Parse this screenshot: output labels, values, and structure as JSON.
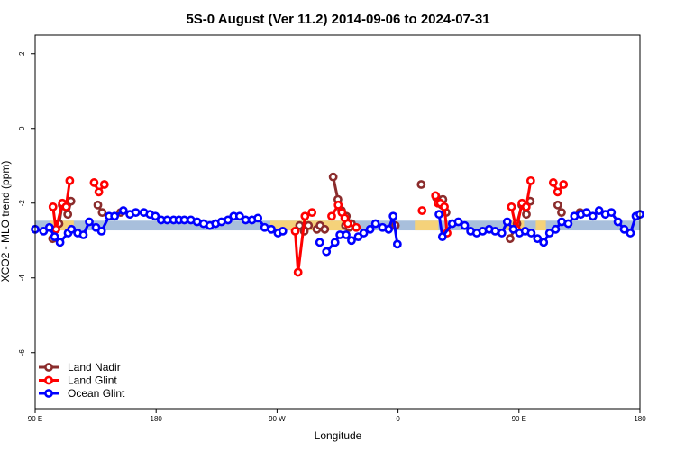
{
  "chart_data": {
    "type": "line",
    "title": "5S-0 August (Ver 11.2)   2014-09-06 to 2024-07-31",
    "xlabel": "Longitude",
    "ylabel": "XCO2 - MLO trend (ppm)",
    "xlim": [
      90,
      450
    ],
    "ylim": [
      -7.5,
      2.5
    ],
    "xticks": [
      {
        "value": 90,
        "label": "90 E"
      },
      {
        "value": 162,
        "label": "180"
      },
      {
        "value": 234,
        "label": "90 W"
      },
      {
        "value": 306,
        "label": "0"
      },
      {
        "value": 378,
        "label": "90 E"
      },
      {
        "value": 450,
        "label": "180"
      }
    ],
    "yticks": [
      {
        "value": 2,
        "label": "2"
      },
      {
        "value": 0,
        "label": "0"
      },
      {
        "value": -2,
        "label": "-2"
      },
      {
        "value": -4,
        "label": "-4"
      },
      {
        "value": -6,
        "label": "-6"
      }
    ],
    "grid": false,
    "legend_position": "bottom-left",
    "bands": [
      {
        "color": "#f5d27a",
        "segments": [
          [
            99,
            113
          ],
          [
            230,
            274
          ],
          [
            316,
            330
          ],
          [
            370,
            381
          ],
          [
            388,
            394
          ]
        ],
        "ymin": -2.73,
        "ymax": -2.47
      },
      {
        "color": "#a8bfdc",
        "segments": [
          [
            90,
            450
          ]
        ],
        "ymin": -2.73,
        "ymax": -2.47
      }
    ],
    "series": [
      {
        "name": "Land Nadir",
        "color": "#8b2c2c",
        "segments": [
          [
            [
              100.4,
              -2.95
            ],
            [
              104.2,
              -2.55
            ],
            [
              106.1,
              -2.05
            ],
            [
              109.4,
              -2.3
            ],
            [
              111.3,
              -1.95
            ]
          ],
          [
            [
              127.3,
              -2.05
            ],
            [
              129.9,
              -2.25
            ]
          ],
          [
            [
              140.9,
              -2.25
            ]
          ],
          [
            [
              247.4,
              -2.6
            ],
            [
              250.2,
              -2.75
            ],
            [
              252.7,
              -2.6
            ]
          ],
          [
            [
              257.7,
              -2.7
            ]
          ],
          [
            [
              259.6,
              -2.6
            ],
            [
              262.4,
              -2.7
            ]
          ],
          [
            [
              267.4,
              -1.3
            ],
            [
              270.2,
              -1.9
            ],
            [
              272.4,
              -2.2
            ],
            [
              275.2,
              -2.35
            ],
            [
              278.3,
              -2.55
            ]
          ],
          [
            [
              274.7,
              -2.6
            ],
            [
              276.8,
              -2.65
            ]
          ],
          [
            [
              304.4,
              -2.6
            ]
          ],
          [
            [
              319.8,
              -1.5
            ]
          ],
          [
            [
              328.8,
              -1.85
            ],
            [
              332.7,
              -1.9
            ],
            [
              334.6,
              -2.25
            ]
          ],
          [
            [
              332.1,
              -2.05
            ]
          ],
          [
            [
              372.7,
              -2.95
            ],
            [
              376.8,
              -2.55
            ],
            [
              379.7,
              -2.05
            ],
            [
              382.4,
              -2.3
            ],
            [
              384.7,
              -1.95
            ]
          ],
          [
            [
              401.1,
              -2.05
            ],
            [
              403.3,
              -2.25
            ]
          ],
          [
            [
              414.3,
              -2.25
            ]
          ]
        ]
      },
      {
        "name": "Land Glint",
        "color": "#ff0000",
        "segments": [
          [
            [
              100.6,
              -2.1
            ],
            [
              102.4,
              -2.7
            ],
            [
              106.2,
              -2.0
            ],
            [
              108.4,
              -2.1
            ],
            [
              110.6,
              -1.4
            ]
          ],
          [
            [
              125.1,
              -1.45
            ],
            [
              127.9,
              -1.7
            ],
            [
              131.2,
              -1.5
            ]
          ],
          [
            [
              244.8,
              -2.75
            ],
            [
              246.5,
              -3.85
            ],
            [
              250.6,
              -2.35
            ],
            [
              254.8,
              -2.25
            ]
          ],
          [
            [
              266.5,
              -2.35
            ],
            [
              270.4,
              -2.05
            ],
            [
              272.6,
              -2.25
            ],
            [
              274.3,
              -2.4
            ],
            [
              276.1,
              -2.55
            ]
          ],
          [
            [
              281.1,
              -2.65
            ]
          ],
          [
            [
              320.3,
              -2.2
            ]
          ],
          [
            [
              328.3,
              -1.8
            ],
            [
              329.8,
              -2.0
            ],
            [
              331.2,
              -2.0
            ],
            [
              333.6,
              -2.1
            ],
            [
              335.2,
              -2.8
            ]
          ],
          [
            [
              373.5,
              -2.1
            ],
            [
              376.5,
              -2.7
            ],
            [
              379.8,
              -2.0
            ],
            [
              382.3,
              -2.1
            ],
            [
              385.0,
              -1.4
            ]
          ],
          [
            [
              398.4,
              -1.45
            ],
            [
              401.0,
              -1.7
            ],
            [
              404.5,
              -1.5
            ]
          ]
        ]
      },
      {
        "name": "Ocean Glint",
        "color": "#0000ff",
        "segments": [
          [
            [
              90,
              -2.7
            ],
            [
              95,
              -2.75
            ],
            [
              98.5,
              -2.65
            ],
            [
              101.6,
              -2.9
            ],
            [
              104.8,
              -3.05
            ],
            [
              109.6,
              -2.8
            ],
            [
              111.6,
              -2.7
            ],
            [
              115.3,
              -2.8
            ],
            [
              118.7,
              -2.85
            ],
            [
              122.2,
              -2.5
            ],
            [
              126.2,
              -2.65
            ],
            [
              129.5,
              -2.75
            ],
            [
              134,
              -2.35
            ],
            [
              137.3,
              -2.35
            ],
            [
              142.5,
              -2.2
            ],
            [
              146.4,
              -2.3
            ],
            [
              149.9,
              -2.25
            ],
            [
              154.7,
              -2.25
            ],
            [
              158.3,
              -2.3
            ],
            [
              161.5,
              -2.35
            ],
            [
              165,
              -2.45
            ],
            [
              168.6,
              -2.45
            ],
            [
              172.4,
              -2.45
            ],
            [
              175.6,
              -2.45
            ],
            [
              178.8,
              -2.45
            ],
            [
              182.7,
              -2.45
            ],
            [
              186.4,
              -2.5
            ],
            [
              190.2,
              -2.55
            ],
            [
              194,
              -2.6
            ],
            [
              197.4,
              -2.55
            ],
            [
              200.9,
              -2.5
            ],
            [
              204.8,
              -2.45
            ],
            [
              208.2,
              -2.35
            ],
            [
              211.7,
              -2.35
            ],
            [
              215.3,
              -2.45
            ],
            [
              219.1,
              -2.45
            ],
            [
              222.6,
              -2.4
            ],
            [
              226.6,
              -2.65
            ],
            [
              230.6,
              -2.7
            ],
            [
              234.5,
              -2.8
            ],
            [
              237.4,
              -2.75
            ]
          ],
          [
            [
              259.4,
              -3.05
            ]
          ],
          [
            [
              263.4,
              -3.3
            ],
            [
              268.5,
              -3.05
            ],
            [
              271.4,
              -2.85
            ],
            [
              275.1,
              -2.85
            ],
            [
              278.3,
              -3.0
            ],
            [
              282.3,
              -2.9
            ],
            [
              285.6,
              -2.8
            ],
            [
              289.4,
              -2.7
            ],
            [
              292.6,
              -2.55
            ],
            [
              296.8,
              -2.65
            ],
            [
              300.4,
              -2.7
            ],
            [
              303.1,
              -2.35
            ],
            [
              305.6,
              -3.1
            ]
          ],
          [
            [
              330.4,
              -2.3
            ],
            [
              332.4,
              -2.9
            ],
            [
              338.3,
              -2.55
            ],
            [
              341.9,
              -2.5
            ],
            [
              345.7,
              -2.6
            ],
            [
              349.2,
              -2.75
            ],
            [
              352.8,
              -2.8
            ],
            [
              356.4,
              -2.75
            ],
            [
              360.2,
              -2.7
            ],
            [
              363.8,
              -2.75
            ],
            [
              367.8,
              -2.8
            ],
            [
              371,
              -2.5
            ],
            [
              374.6,
              -2.7
            ],
            [
              378.3,
              -2.8
            ],
            [
              381.7,
              -2.75
            ],
            [
              385.3,
              -2.8
            ],
            [
              389,
              -2.95
            ],
            [
              392.7,
              -3.05
            ],
            [
              396.2,
              -2.8
            ],
            [
              399.8,
              -2.7
            ],
            [
              403.4,
              -2.5
            ],
            [
              407.3,
              -2.55
            ],
            [
              411,
              -2.35
            ],
            [
              414.8,
              -2.3
            ],
            [
              418.2,
              -2.25
            ],
            [
              422,
              -2.35
            ],
            [
              425.7,
              -2.2
            ],
            [
              429.4,
              -2.3
            ],
            [
              433,
              -2.25
            ],
            [
              436.9,
              -2.5
            ],
            [
              440.6,
              -2.7
            ],
            [
              444.3,
              -2.8
            ],
            [
              447.6,
              -2.35
            ],
            [
              450,
              -2.3
            ]
          ]
        ]
      }
    ]
  }
}
